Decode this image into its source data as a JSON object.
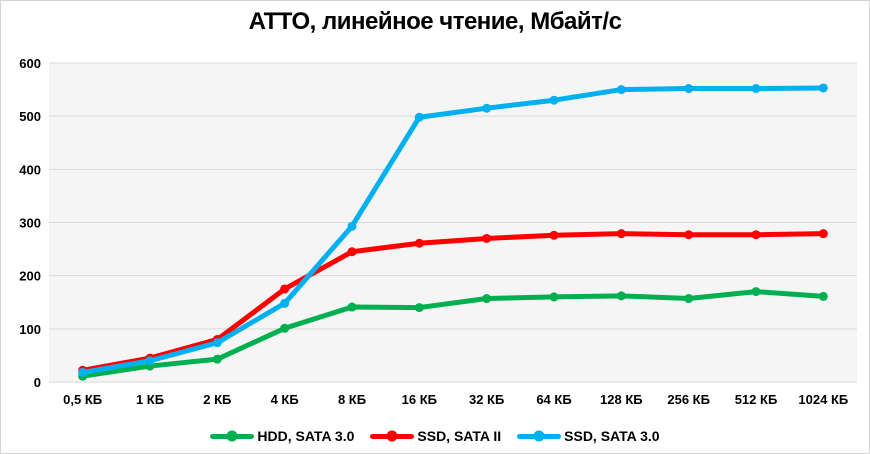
{
  "window": {
    "background": "#ffffff",
    "border_color": "#d4d4d4"
  },
  "chart_data": {
    "type": "line",
    "title": "ATTO, линейное чтение, Мбайт/с",
    "categories": [
      "0,5 КБ",
      "1 КБ",
      "2 КБ",
      "4 КБ",
      "8 КБ",
      "16 КБ",
      "32 КБ",
      "64 КБ",
      "128 КБ",
      "256 КБ",
      "512 КБ",
      "1024 КБ"
    ],
    "series": [
      {
        "name": "HDD, SATA 3.0",
        "color": "#00B050",
        "values": [
          11,
          30,
          43,
          101,
          141,
          140,
          157,
          160,
          162,
          157,
          170,
          161
        ]
      },
      {
        "name": "SSD, SATA II",
        "color": "#FF0000",
        "values": [
          22,
          45,
          80,
          175,
          245,
          261,
          270,
          276,
          279,
          277,
          277,
          279
        ]
      },
      {
        "name": "SSD, SATA 3.0",
        "color": "#00B0F0",
        "values": [
          18,
          40,
          74,
          148,
          293,
          498,
          515,
          530,
          550,
          552,
          552,
          553
        ]
      }
    ],
    "xlabel": "",
    "ylabel": "",
    "ylim": [
      0,
      600
    ],
    "ytick_step": 100,
    "yticks": [
      0,
      100,
      200,
      300,
      400,
      500,
      600
    ],
    "grid": true,
    "legend_position": "bottom",
    "plot_background": "#f5f5f5",
    "gridline_color": "#d9d9d9",
    "text_color": "#000000"
  }
}
